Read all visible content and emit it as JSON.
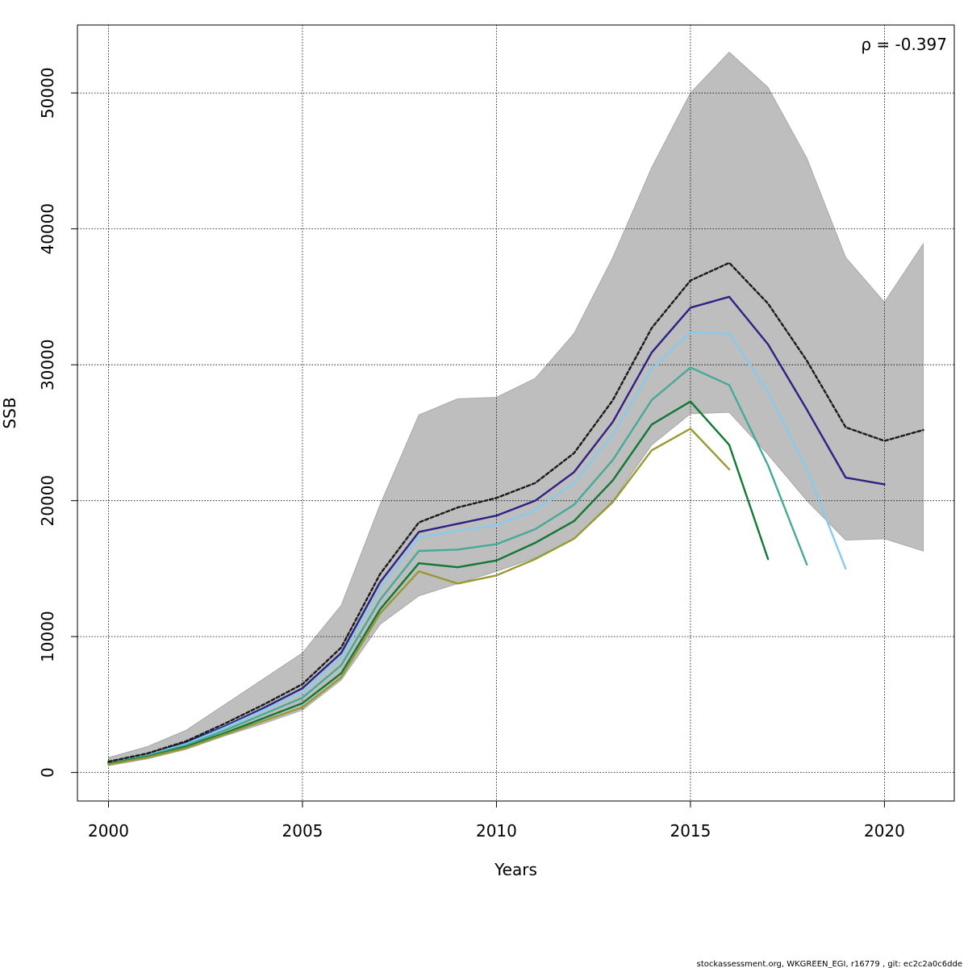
{
  "chart_data": {
    "type": "line",
    "xlabel": "Years",
    "ylabel": "SSB",
    "xlim": [
      1999.2,
      2021.8
    ],
    "ylim": [
      -2100,
      55000
    ],
    "x_ticks": [
      2000,
      2005,
      2010,
      2015,
      2020
    ],
    "y_ticks": [
      0,
      10000,
      20000,
      30000,
      40000,
      50000
    ],
    "grid": true,
    "annotation": "ρ = -0.397",
    "confidence_band": {
      "color": "#bebebe",
      "x": [
        2000,
        2001,
        2002,
        2003,
        2004,
        2005,
        2006,
        2007,
        2008,
        2009,
        2010,
        2011,
        2012,
        2013,
        2014,
        2015,
        2016,
        2017,
        2018,
        2019,
        2020,
        2021
      ],
      "upper": [
        1100,
        1900,
        3100,
        5000,
        6900,
        8800,
        12300,
        19700,
        26300,
        27500,
        27600,
        29000,
        32300,
        37900,
        44500,
        50000,
        53000,
        50400,
        45200,
        37900,
        34600,
        38900
      ],
      "lower": [
        500,
        1000,
        1700,
        2700,
        3600,
        4600,
        6800,
        10900,
        13000,
        13900,
        14800,
        15800,
        17200,
        20000,
        24100,
        26400,
        26500,
        23400,
        20000,
        17100,
        17200,
        16300
      ]
    },
    "series": [
      {
        "color": "#000000",
        "dashed": true,
        "x": [
          2000,
          2001,
          2002,
          2003,
          2004,
          2005,
          2006,
          2007,
          2008,
          2009,
          2010,
          2011,
          2012,
          2013,
          2014,
          2015,
          2016,
          2017,
          2018,
          2019,
          2020,
          2021
        ],
        "y": [
          800,
          1400,
          2300,
          3600,
          5000,
          6500,
          9200,
          14600,
          18400,
          19500,
          20200,
          21300,
          23500,
          27400,
          32700,
          36200,
          37500,
          34500,
          30300,
          25400,
          24400,
          25200
        ]
      },
      {
        "color": "#2c2284",
        "x": [
          2000,
          2001,
          2002,
          2003,
          2004,
          2005,
          2006,
          2007,
          2008,
          2009,
          2010,
          2011,
          2012,
          2013,
          2014,
          2015,
          2016,
          2017,
          2018,
          2019,
          2020
        ],
        "y": [
          750,
          1350,
          2200,
          3400,
          4750,
          6200,
          8800,
          14000,
          17700,
          18300,
          18900,
          20000,
          22100,
          25800,
          30900,
          34200,
          35000,
          31500,
          26700,
          21700,
          21200
        ]
      },
      {
        "color": "#88cbec",
        "x": [
          2000,
          2001,
          2002,
          2003,
          2004,
          2005,
          2006,
          2007,
          2008,
          2009,
          2010,
          2011,
          2012,
          2013,
          2014,
          2015,
          2016,
          2017,
          2018,
          2019
        ],
        "y": [
          720,
          1300,
          2100,
          3300,
          4600,
          5900,
          8500,
          13500,
          17300,
          17800,
          18200,
          19300,
          21300,
          24900,
          29700,
          32400,
          32300,
          28000,
          22300,
          15000
        ]
      },
      {
        "color": "#45aa98",
        "x": [
          2000,
          2001,
          2002,
          2003,
          2004,
          2005,
          2006,
          2007,
          2008,
          2009,
          2010,
          2011,
          2012,
          2013,
          2014,
          2015,
          2016,
          2017,
          2018
        ],
        "y": [
          690,
          1250,
          2000,
          3100,
          4300,
          5500,
          7900,
          12700,
          16300,
          16400,
          16800,
          17900,
          19700,
          23000,
          27400,
          29800,
          28500,
          22600,
          15300
        ]
      },
      {
        "color": "#127733",
        "x": [
          2000,
          2001,
          2002,
          2003,
          2004,
          2005,
          2006,
          2007,
          2008,
          2009,
          2010,
          2011,
          2012,
          2013,
          2014,
          2015,
          2016,
          2017
        ],
        "y": [
          650,
          1150,
          1900,
          2900,
          4000,
          5100,
          7300,
          12000,
          15400,
          15100,
          15600,
          16900,
          18500,
          21500,
          25600,
          27300,
          24100,
          15700
        ]
      },
      {
        "color": "#999933",
        "x": [
          2000,
          2001,
          2002,
          2003,
          2004,
          2005,
          2006,
          2007,
          2008,
          2009,
          2010,
          2011,
          2012,
          2013,
          2014,
          2015,
          2016
        ],
        "y": [
          600,
          1100,
          1800,
          2800,
          3800,
          4800,
          7000,
          11700,
          14800,
          13900,
          14500,
          15700,
          17200,
          19900,
          23700,
          25300,
          22300
        ]
      }
    ]
  },
  "footer": "stockassessment.org, WKGREEN_EGI, r16779 , git: ec2c2a0c6dde"
}
